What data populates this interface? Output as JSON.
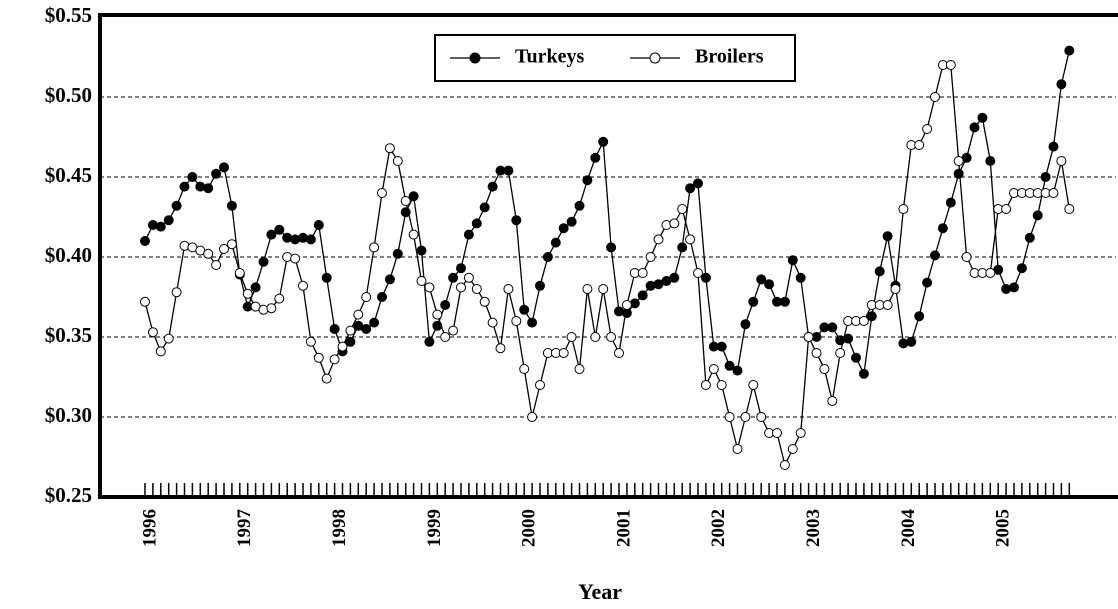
{
  "chart_data": {
    "type": "line",
    "x_label": "Year",
    "legend": "top",
    "grid": true,
    "categories": [
      "1996",
      null,
      null,
      null,
      null,
      null,
      null,
      null,
      null,
      null,
      null,
      null,
      "1997",
      null,
      null,
      null,
      null,
      null,
      null,
      null,
      null,
      null,
      null,
      null,
      "1998",
      null,
      null,
      null,
      null,
      null,
      null,
      null,
      null,
      null,
      null,
      null,
      "1999",
      null,
      null,
      null,
      null,
      null,
      null,
      null,
      null,
      null,
      null,
      null,
      "2000",
      null,
      null,
      null,
      null,
      null,
      null,
      null,
      null,
      null,
      null,
      null,
      "2001",
      null,
      null,
      null,
      null,
      null,
      null,
      null,
      null,
      null,
      null,
      null,
      "2002",
      null,
      null,
      null,
      null,
      null,
      null,
      null,
      null,
      null,
      null,
      null,
      "2003",
      null,
      null,
      null,
      null,
      null,
      null,
      null,
      null,
      null,
      null,
      null,
      "2004",
      null,
      null,
      null,
      null,
      null,
      null,
      null,
      null,
      null,
      null,
      null,
      "2005",
      null,
      null,
      null,
      null,
      null,
      null,
      null,
      null,
      null
    ],
    "series": [
      {
        "name": "Turkeys",
        "color": "#000000",
        "marker": "filled",
        "values": [
          0.41,
          0.42,
          0.419,
          0.423,
          0.432,
          0.444,
          0.45,
          0.444,
          0.443,
          0.452,
          0.456,
          0.432,
          0.389,
          0.369,
          0.381,
          0.397,
          0.414,
          0.417,
          0.412,
          0.411,
          0.412,
          0.411,
          0.42,
          0.387,
          0.355,
          0.341,
          0.347,
          0.357,
          0.355,
          0.359,
          0.375,
          0.386,
          0.402,
          0.428,
          0.438,
          0.404,
          0.347,
          0.357,
          0.37,
          0.387,
          0.393,
          0.414,
          0.421,
          0.431,
          0.444,
          0.454,
          0.454,
          0.423,
          0.367,
          0.359,
          0.382,
          0.4,
          0.409,
          0.418,
          0.422,
          0.432,
          0.448,
          0.462,
          0.472,
          0.406,
          0.366,
          0.365,
          0.371,
          0.376,
          0.382,
          0.383,
          0.385,
          0.387,
          0.406,
          0.443,
          0.446,
          0.387,
          0.344,
          0.344,
          0.332,
          0.329,
          0.358,
          0.372,
          0.386,
          0.383,
          0.372,
          0.372,
          0.398,
          0.387,
          0.35,
          0.35,
          0.356,
          0.356,
          0.348,
          0.349,
          0.337,
          0.327,
          0.363,
          0.391,
          0.413,
          0.382,
          0.346,
          0.347,
          0.363,
          0.384,
          0.401,
          0.418,
          0.434,
          0.452,
          0.462,
          0.481,
          0.487,
          0.46,
          0.392,
          0.38,
          0.381,
          0.393,
          0.412,
          0.426,
          0.45,
          0.469,
          0.508,
          0.529
        ]
      },
      {
        "name": "Broilers",
        "color": "#000000",
        "marker": "open",
        "values": [
          0.372,
          0.353,
          0.341,
          0.349,
          0.378,
          0.407,
          0.406,
          0.404,
          0.402,
          0.395,
          0.405,
          0.408,
          0.39,
          0.377,
          0.369,
          0.367,
          0.368,
          0.374,
          0.4,
          0.399,
          0.382,
          0.347,
          0.337,
          0.324,
          0.336,
          0.344,
          0.354,
          0.364,
          0.375,
          0.406,
          0.44,
          0.468,
          0.46,
          0.435,
          0.414,
          0.385,
          0.381,
          0.364,
          0.35,
          0.354,
          0.381,
          0.387,
          0.38,
          0.372,
          0.359,
          0.343,
          0.38,
          0.36,
          0.33,
          0.3,
          0.32,
          0.34,
          0.34,
          0.34,
          0.35,
          0.33,
          0.38,
          0.35,
          0.38,
          0.35,
          0.34,
          0.37,
          0.39,
          0.39,
          0.4,
          0.411,
          0.42,
          0.421,
          0.43,
          0.411,
          0.39,
          0.32,
          0.33,
          0.32,
          0.3,
          0.28,
          0.3,
          0.32,
          0.3,
          0.29,
          0.29,
          0.27,
          0.28,
          0.29,
          0.35,
          0.34,
          0.33,
          0.31,
          0.34,
          0.36,
          0.36,
          0.36,
          0.37,
          0.37,
          0.37,
          0.38,
          0.43,
          0.47,
          0.47,
          0.48,
          0.5,
          0.52,
          0.52,
          0.46,
          0.4,
          0.39,
          0.39,
          0.39,
          0.43,
          0.43,
          0.44,
          0.44,
          0.44,
          0.44,
          0.44,
          0.44,
          0.46,
          0.43
        ]
      }
    ],
    "ylim": [
      0.25,
      0.55
    ],
    "yticks": [
      {
        "value": 0.25,
        "label": "$0.25"
      },
      {
        "value": 0.3,
        "label": "$0.30"
      },
      {
        "value": 0.35,
        "label": "$0.35"
      },
      {
        "value": 0.4,
        "label": "$0.40"
      },
      {
        "value": 0.45,
        "label": "$0.45"
      },
      {
        "value": 0.5,
        "label": "$0.50"
      },
      {
        "value": 0.55,
        "label": "$0.55"
      }
    ]
  }
}
